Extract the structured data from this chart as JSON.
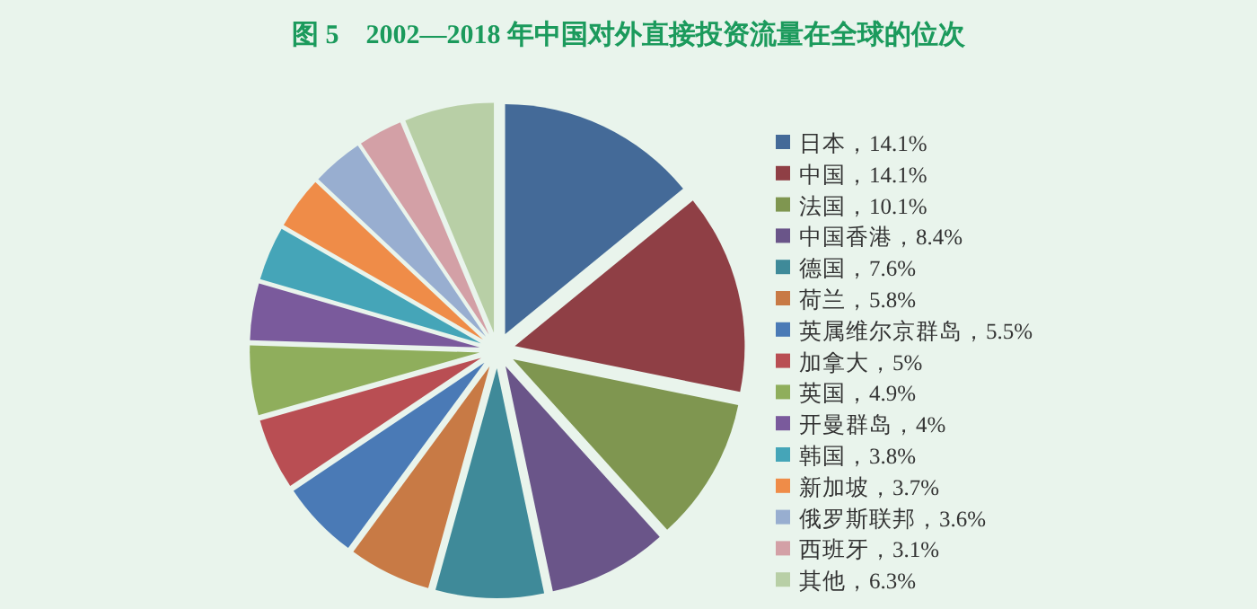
{
  "chart_data": {
    "type": "pie",
    "title": "图 5　2002—2018 年中国对外直接投资流量在全球的位次",
    "categories": [
      "日本，14.1%",
      "中国，14.1%",
      "法国，10.1%",
      "中国香港，8.4%",
      "德国，7.6%",
      "荷兰，5.8%",
      "英属维尔京群岛，5.5%",
      "加拿大，5%",
      "英国，4.9%",
      "开曼群岛，4%",
      "韩国，3.8%",
      "新加坡，3.7%",
      "俄罗斯联邦，3.6%",
      "西班牙，3.1%",
      "其他，6.3%"
    ],
    "values": [
      14.1,
      14.1,
      10.1,
      8.4,
      7.6,
      5.8,
      5.5,
      5,
      4.9,
      4,
      3.8,
      3.7,
      3.6,
      3.1,
      6.3
    ],
    "colors": [
      "#446a98",
      "#8f3f45",
      "#7f9650",
      "#6a5589",
      "#3f8a99",
      "#c87a45",
      "#4a7ab6",
      "#b94e53",
      "#8fae5c",
      "#7a5a9c",
      "#45a5b8",
      "#ef8c48",
      "#98aed0",
      "#d3a0a6",
      "#b8cfa6"
    ],
    "legend": "right"
  }
}
